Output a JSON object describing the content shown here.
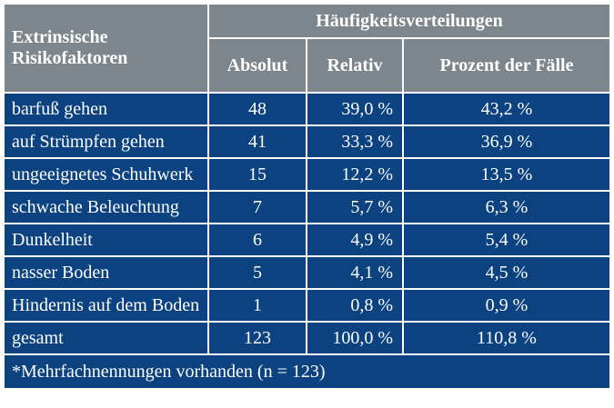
{
  "header": {
    "factor_label_line1": "Extrinsische",
    "factor_label_line2": "Risikofaktoren",
    "group_label": "Häufigkeitsverteilungen",
    "columns": [
      "Absolut",
      "Relativ",
      "Prozent der Fälle"
    ]
  },
  "rows": [
    {
      "factor": "barfuß gehen",
      "absolut": "48",
      "relativ": "39,0 %",
      "prozent": "43,2 %"
    },
    {
      "factor": "auf Strümpfen gehen",
      "absolut": "41",
      "relativ": "33,3 %",
      "prozent": "36,9 %"
    },
    {
      "factor": "ungeeignetes Schuhwerk",
      "absolut": "15",
      "relativ": "12,2 %",
      "prozent": "13,5 %"
    },
    {
      "factor": "schwache Beleuchtung",
      "absolut": "7",
      "relativ": "5,7 %",
      "prozent": "6,3 %"
    },
    {
      "factor": "Dunkelheit",
      "absolut": "6",
      "relativ": "4,9 %",
      "prozent": "5,4 %"
    },
    {
      "factor": "nasser Boden",
      "absolut": "5",
      "relativ": "4,1 %",
      "prozent": "4,5 %"
    },
    {
      "factor": "Hindernis auf dem Boden",
      "absolut": "1",
      "relativ": "0,8 %",
      "prozent": "0,9 %"
    },
    {
      "factor": "gesamt",
      "absolut": "123",
      "relativ": "100,0 %",
      "prozent": "110,8 %"
    }
  ],
  "footnote": "*Mehrfachnennungen vorhanden (n = 123)",
  "colors": {
    "header_bg": "#7d868c",
    "body_bg": "#0b427f"
  }
}
